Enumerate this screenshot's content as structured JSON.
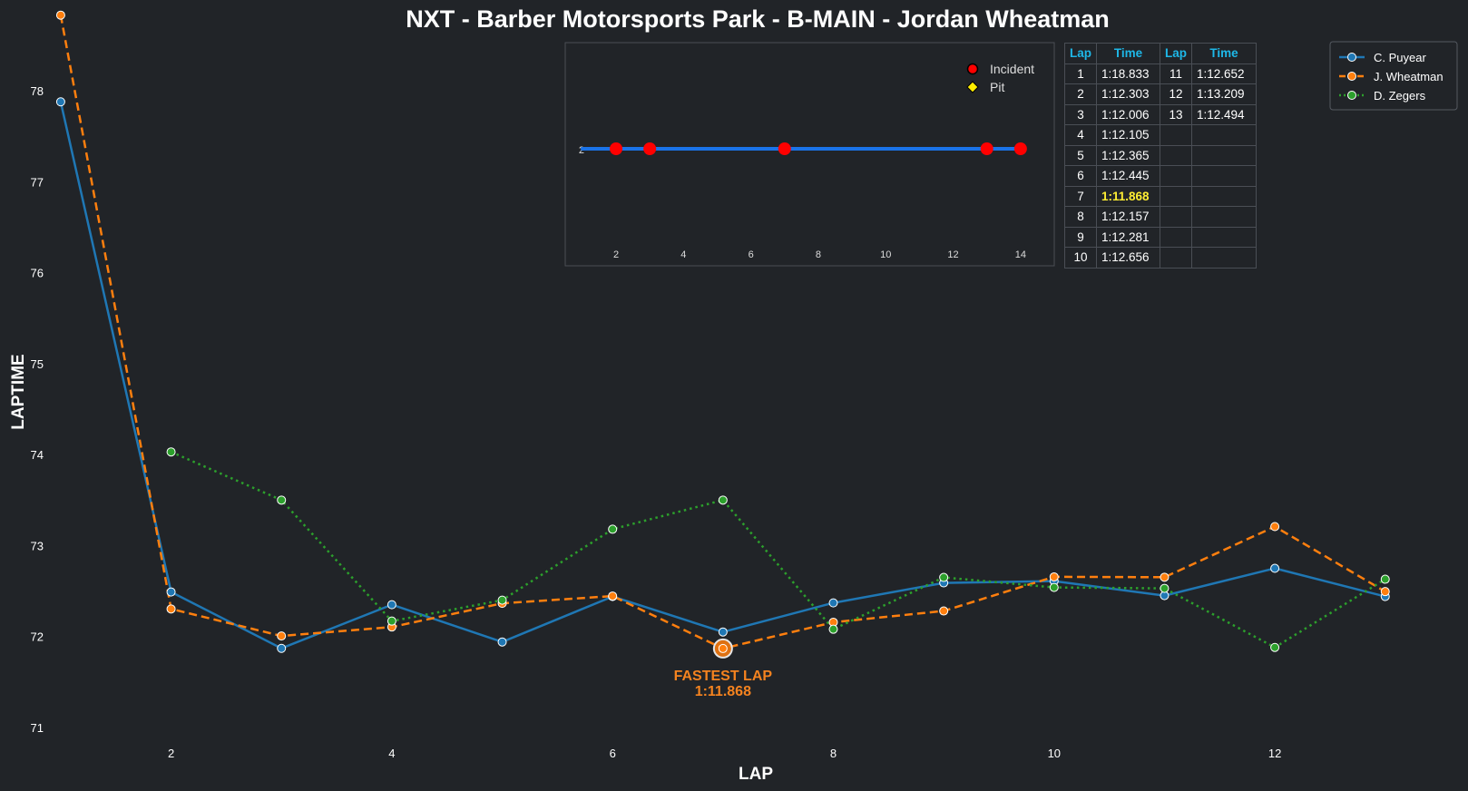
{
  "chart_data": {
    "type": "line",
    "title": "NXT - Barber Motorsports Park - B-MAIN - Jordan Wheatman",
    "xlabel": "LAP",
    "ylabel": "LAPTIME",
    "xlim": [
      0.45,
      13.75
    ],
    "ylim": [
      70.8,
      78.9
    ],
    "xticks": [
      2,
      4,
      6,
      8,
      10,
      12
    ],
    "yticks": [
      71,
      72,
      73,
      74,
      75,
      76,
      77,
      78
    ],
    "series": [
      {
        "name": "C. Puyear",
        "color": "#1f77b4",
        "style": "solid",
        "x": [
          1,
          2,
          3,
          4,
          5,
          6,
          7,
          8,
          9,
          10,
          11,
          12,
          13
        ],
        "values": [
          77.88,
          72.49,
          71.87,
          72.35,
          71.94,
          72.44,
          72.05,
          72.37,
          72.59,
          72.61,
          72.45,
          72.75,
          72.44
        ]
      },
      {
        "name": "J. Wheatman",
        "color": "#ff7f0e",
        "style": "dashed",
        "x": [
          1,
          2,
          3,
          4,
          5,
          6,
          7,
          8,
          9,
          10,
          11,
          12,
          13
        ],
        "values": [
          78.833,
          72.303,
          72.006,
          72.105,
          72.365,
          72.445,
          71.868,
          72.157,
          72.281,
          72.656,
          72.652,
          73.209,
          72.494
        ]
      },
      {
        "name": "D. Zegers",
        "color": "#2ca02c",
        "style": "dotted",
        "x": [
          2,
          3,
          4,
          5,
          6,
          7,
          8,
          9,
          10,
          11,
          12,
          13
        ],
        "values": [
          74.03,
          73.5,
          72.17,
          72.4,
          73.18,
          73.5,
          72.08,
          72.65,
          72.54,
          72.53,
          71.88,
          72.63
        ]
      }
    ],
    "annotation": {
      "label": "FASTEST LAP",
      "value_text": "1:11.868",
      "x": 7,
      "y": 71.868
    },
    "legend_position": "top-right",
    "inset": {
      "type": "scatter",
      "y_value": 2,
      "ytick_label": "2",
      "xlim": [
        0.6,
        15
      ],
      "xticks": [
        2,
        4,
        6,
        8,
        10,
        12,
        14
      ],
      "line_x": [
        1,
        14
      ],
      "incidents": [
        2,
        3,
        7,
        13,
        14
      ],
      "pits": [],
      "legend": [
        {
          "label": "Incident",
          "color": "#ff0000"
        },
        {
          "label": "Pit",
          "color": "#ffee00"
        }
      ]
    }
  },
  "table": {
    "headers": [
      "Lap",
      "Time",
      "Lap",
      "Time"
    ],
    "best_time": "1:11.868",
    "rows": [
      [
        "1",
        "1:18.833",
        "11",
        "1:12.652"
      ],
      [
        "2",
        "1:12.303",
        "12",
        "1:13.209"
      ],
      [
        "3",
        "1:12.006",
        "13",
        "1:12.494"
      ],
      [
        "4",
        "1:12.105",
        "",
        ""
      ],
      [
        "5",
        "1:12.365",
        "",
        ""
      ],
      [
        "6",
        "1:12.445",
        "",
        ""
      ],
      [
        "7",
        "1:11.868",
        "",
        ""
      ],
      [
        "8",
        "1:12.157",
        "",
        ""
      ],
      [
        "9",
        "1:12.281",
        "",
        ""
      ],
      [
        "10",
        "1:12.656",
        "",
        ""
      ]
    ]
  }
}
